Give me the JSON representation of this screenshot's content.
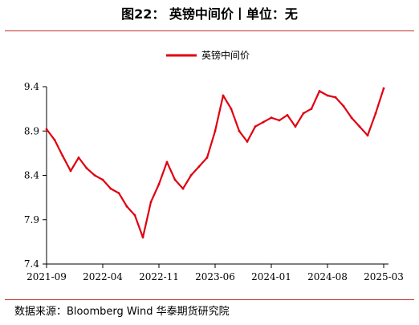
{
  "figure": {
    "title": "图22：   英镑中间价丨单位：无",
    "source_label": "数据来源：",
    "source_text": "Bloomberg Wind 华泰期货研究院"
  },
  "chart_data": {
    "type": "line",
    "title": "",
    "xlabel": "",
    "ylabel": "",
    "ylim": [
      7.4,
      9.4
    ],
    "yticks": [
      7.4,
      7.9,
      8.4,
      8.9,
      9.4
    ],
    "x_tick_labels": [
      "2021-09",
      "2022-04",
      "2022-11",
      "2023-06",
      "2024-01",
      "2024-08",
      "2025-03"
    ],
    "legend_position": "top-center",
    "grid": false,
    "color": "#e00010",
    "series": [
      {
        "name": "英镑中间价",
        "x": [
          "2021-09",
          "2021-10",
          "2021-11",
          "2021-12",
          "2022-01",
          "2022-02",
          "2022-03",
          "2022-04",
          "2022-05",
          "2022-06",
          "2022-07",
          "2022-08",
          "2022-09",
          "2022-10",
          "2022-11",
          "2022-12",
          "2023-01",
          "2023-02",
          "2023-03",
          "2023-04",
          "2023-05",
          "2023-06",
          "2023-07",
          "2023-08",
          "2023-09",
          "2023-10",
          "2023-11",
          "2023-12",
          "2024-01",
          "2024-02",
          "2024-03",
          "2024-04",
          "2024-05",
          "2024-06",
          "2024-07",
          "2024-08",
          "2024-09",
          "2024-10",
          "2024-11",
          "2024-12",
          "2025-01",
          "2025-02",
          "2025-03"
        ],
        "values": [
          8.92,
          8.8,
          8.62,
          8.45,
          8.6,
          8.48,
          8.4,
          8.35,
          8.25,
          8.2,
          8.05,
          7.95,
          7.7,
          8.1,
          8.3,
          8.55,
          8.35,
          8.25,
          8.4,
          8.5,
          8.6,
          8.9,
          9.3,
          9.15,
          8.9,
          8.78,
          8.95,
          9.0,
          9.05,
          9.02,
          9.08,
          8.95,
          9.1,
          9.15,
          9.35,
          9.3,
          9.28,
          9.18,
          9.05,
          8.95,
          8.85,
          9.1,
          9.38
        ]
      }
    ]
  }
}
